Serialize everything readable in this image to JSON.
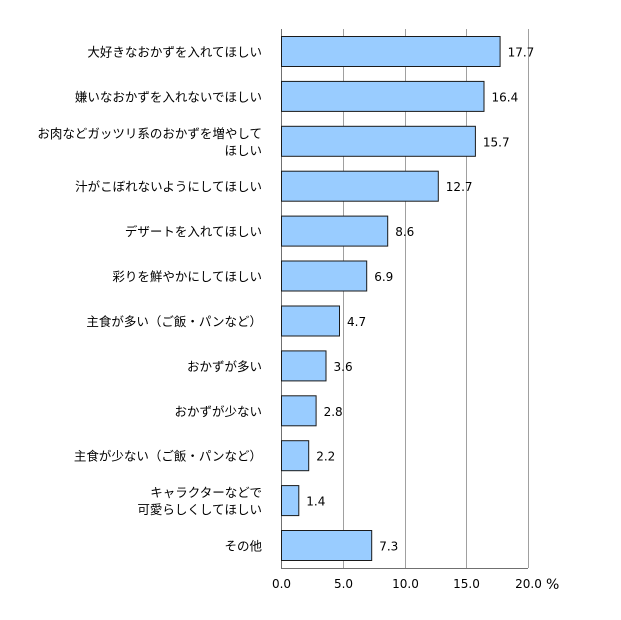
{
  "chart_data": {
    "type": "bar",
    "orientation": "horizontal",
    "categories": [
      "大好きなおかずを入れてほしい",
      "嫌いなおかずを入れないでほしい",
      "お肉などガッツリ系のおかずを増やして\nほしい",
      "汁がこぼれないようにしてほしい",
      "デザートを入れてほしい",
      "彩りを鮮やかにしてほしい",
      "主食が多い（ご飯・パンなど）",
      "おかずが多い",
      "おかずが少ない",
      "主食が少ない（ご飯・パンなど）",
      "キャラクターなどで\n可愛らしくしてほしい",
      "その他"
    ],
    "values": [
      17.7,
      16.4,
      15.7,
      12.7,
      8.6,
      6.9,
      4.7,
      3.6,
      2.8,
      2.2,
      1.4,
      7.3
    ],
    "value_labels": [
      "17.7",
      "16.4",
      "15.7",
      "12.7",
      "8.6",
      "6.9",
      "4.7",
      "3.6",
      "2.8",
      "2.2",
      "1.4",
      "7.3"
    ],
    "xlim": [
      0,
      20
    ],
    "ticks": [
      "0.0",
      "5.0",
      "10.0",
      "15.0",
      "20.0"
    ],
    "unit": "%",
    "grid": true,
    "bar_color": "#99ccff",
    "bar_edge_color": "#1a1a1a"
  }
}
